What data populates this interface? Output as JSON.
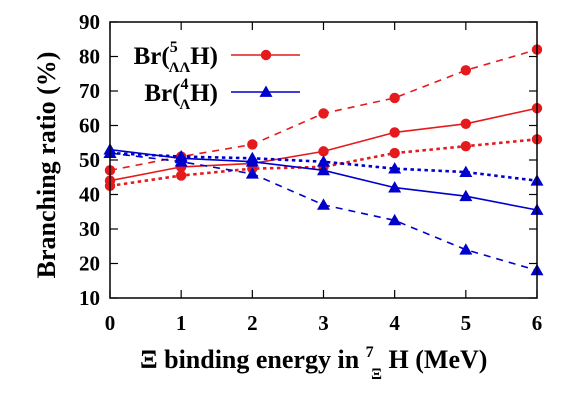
{
  "chart_data": {
    "type": "line",
    "xlabel": {
      "main": "Ξ binding energy in ",
      "nucleus_mass": "7",
      "nucleus_sub": "Ξ",
      "nucleus_symbol": "H",
      "unit": " (MeV)"
    },
    "ylabel": "Branching ratio (%)",
    "xlim": [
      0,
      6
    ],
    "ylim": [
      10,
      90
    ],
    "xticks": [
      "0",
      "1",
      "2",
      "3",
      "4",
      "5",
      "6"
    ],
    "yticks": [
      "10",
      "20",
      "30",
      "40",
      "50",
      "60",
      "70",
      "80",
      "90"
    ],
    "grid": false,
    "legend_position": "top-left",
    "legend": [
      {
        "prefix": "Br(",
        "sup": "5",
        "sub": "ΛΛ",
        "symbol": "H",
        "suffix": ")",
        "color": "#e41a1c",
        "marker": "circle"
      },
      {
        "prefix": "Br(",
        "sup": "4",
        "sub": "Λ",
        "symbol": "H",
        "suffix": ")",
        "color": "#0000cc",
        "marker": "triangle"
      }
    ],
    "x": [
      0,
      1,
      2,
      3,
      4,
      5,
      6
    ],
    "series": [
      {
        "legend_index": 0,
        "color": "#e41a1c",
        "marker": "circle",
        "line": "solid",
        "values": [
          44,
          48,
          49,
          52.5,
          58,
          60.5,
          65
        ]
      },
      {
        "legend_index": 0,
        "color": "#e41a1c",
        "marker": "circle",
        "line": "dashed",
        "values": [
          47,
          51,
          54.5,
          63.5,
          68,
          76,
          82
        ]
      },
      {
        "legend_index": 0,
        "color": "#e41a1c",
        "marker": "circle",
        "line": "dotted",
        "values": [
          42.5,
          45.5,
          47.5,
          48,
          52,
          54,
          56
        ]
      },
      {
        "legend_index": 1,
        "color": "#0000cc",
        "marker": "triangle",
        "line": "solid",
        "values": [
          53,
          50.5,
          49.5,
          47,
          42,
          39.5,
          35.5
        ]
      },
      {
        "legend_index": 1,
        "color": "#0000cc",
        "marker": "triangle",
        "line": "dashed",
        "values": [
          52,
          49.5,
          46,
          37,
          32.5,
          24,
          18
        ]
      },
      {
        "legend_index": 1,
        "color": "#0000cc",
        "marker": "triangle",
        "line": "dotted",
        "values": [
          52,
          51,
          50.5,
          49.5,
          47.5,
          46.5,
          44
        ]
      }
    ]
  }
}
